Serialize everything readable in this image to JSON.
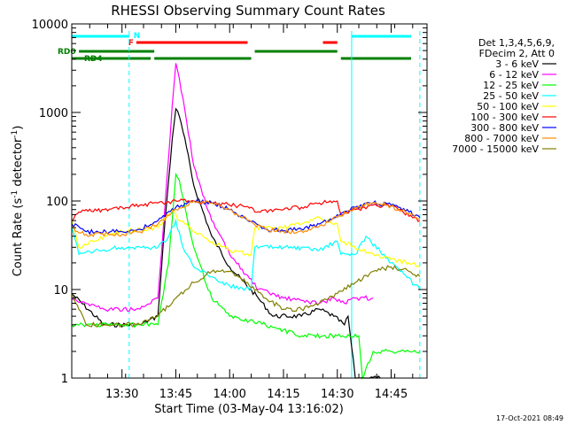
{
  "chart_data": {
    "type": "line",
    "title": "RHESSI Observing Summary Count Rates",
    "xlabel": "Start Time (03-May-04 13:16:02)",
    "ylabel": "Count Rate (s^-1 detector^-1)",
    "ylabel_main": "Count Rate (s",
    "ylabel_sup1": "-1",
    "ylabel_mid": " detector",
    "ylabel_sup2": "-1",
    "ylabel_end": ")",
    "xlim": [
      "13:16:02",
      "14:55"
    ],
    "ylim": [
      1,
      10000
    ],
    "yscale": "log",
    "x_ticks": [
      "13:30",
      "13:45",
      "14:00",
      "14:15",
      "14:30",
      "14:45"
    ],
    "y_ticks": [
      "1",
      "10",
      "100",
      "1000",
      "10000"
    ],
    "legend": {
      "position": "right",
      "header": [
        "Det 1,3,4,5,6,9,",
        "FDecim 2, Att 0"
      ]
    },
    "series": [
      {
        "name": "3 - 6 keV",
        "color": "#000000",
        "x": [
          "13:16",
          "13:25",
          "13:35",
          "13:40",
          "13:42",
          "13:44",
          "13:45",
          "13:46",
          "13:48",
          "13:50",
          "13:55",
          "14:00",
          "14:08",
          "14:12",
          "14:20",
          "14:25",
          "14:29",
          "14:32",
          "14:33",
          "14:35",
          "14:38",
          "14:42"
        ],
        "y": [
          9,
          4,
          4,
          5,
          60,
          500,
          1100,
          900,
          400,
          150,
          40,
          18,
          8,
          5,
          5,
          6,
          5,
          4,
          5,
          1,
          1,
          1
        ]
      },
      {
        "name": "6 - 12 keV",
        "color": "#ff00ff",
        "x": [
          "13:16",
          "13:25",
          "13:35",
          "13:40",
          "13:42",
          "13:44",
          "13:45",
          "13:46",
          "13:48",
          "13:50",
          "13:55",
          "14:00",
          "14:08",
          "14:15",
          "14:25",
          "14:29",
          "14:32",
          "14:35",
          "14:40"
        ],
        "y": [
          8,
          6,
          6,
          8,
          90,
          1200,
          3600,
          2400,
          800,
          250,
          60,
          25,
          10,
          8,
          7,
          8,
          7,
          8,
          8
        ]
      },
      {
        "name": "12 - 25 keV",
        "color": "#00ff00",
        "x": [
          "13:16",
          "13:20",
          "13:30",
          "13:40",
          "13:43",
          "13:45",
          "13:46",
          "13:50",
          "13:55",
          "14:00",
          "14:10",
          "14:20",
          "14:30",
          "14:36",
          "14:37",
          "14:40",
          "14:50",
          "14:53"
        ],
        "y": [
          4,
          4,
          4,
          4,
          20,
          200,
          170,
          30,
          8,
          5,
          4,
          3,
          3,
          3,
          1,
          2,
          2,
          2
        ]
      },
      {
        "name": "25 - 50 keV",
        "color": "#00ffff",
        "x": [
          "13:16",
          "13:18",
          "13:25",
          "13:30",
          "13:40",
          "13:43",
          "13:45",
          "13:47",
          "13:50",
          "13:55",
          "14:00",
          "14:06",
          "14:07",
          "14:15",
          "14:25",
          "14:30",
          "14:31",
          "14:35",
          "14:38",
          "14:45",
          "14:53"
        ],
        "y": [
          50,
          25,
          28,
          30,
          30,
          40,
          60,
          30,
          18,
          14,
          11,
          10,
          30,
          30,
          28,
          35,
          25,
          25,
          40,
          20,
          10
        ]
      },
      {
        "name": "50 - 100 keV",
        "color": "#ffff00",
        "x": [
          "13:16",
          "13:18",
          "13:25",
          "13:30",
          "13:40",
          "13:44",
          "13:46",
          "13:50",
          "13:55",
          "14:00",
          "14:06",
          "14:07",
          "14:15",
          "14:20",
          "14:25",
          "14:30",
          "14:31",
          "14:40",
          "14:45",
          "14:50",
          "14:53"
        ],
        "y": [
          60,
          30,
          40,
          45,
          50,
          80,
          60,
          45,
          35,
          28,
          25,
          50,
          50,
          55,
          65,
          55,
          35,
          25,
          22,
          20,
          18
        ]
      },
      {
        "name": "100 - 300 keV",
        "color": "#ff0000",
        "x": [
          "13:16",
          "13:18",
          "13:25",
          "13:30",
          "13:35",
          "13:40",
          "13:45",
          "13:50",
          "13:55",
          "14:00",
          "14:06",
          "14:07",
          "14:15",
          "14:20",
          "14:25",
          "14:30",
          "14:31",
          "14:35",
          "14:40",
          "14:45",
          "14:53"
        ],
        "y": [
          60,
          75,
          80,
          85,
          90,
          95,
          100,
          100,
          95,
          90,
          85,
          75,
          80,
          85,
          95,
          100,
          70,
          80,
          90,
          88,
          60
        ]
      },
      {
        "name": "300 - 800 keV",
        "color": "#0000ff",
        "x": [
          "13:16",
          "13:20",
          "13:30",
          "13:35",
          "13:40",
          "13:45",
          "13:50",
          "13:55",
          "14:00",
          "14:05",
          "14:10",
          "14:15",
          "14:20",
          "14:25",
          "14:30",
          "14:35",
          "14:40",
          "14:45",
          "14:50",
          "14:53"
        ],
        "y": [
          55,
          45,
          45,
          48,
          60,
          85,
          100,
          95,
          80,
          60,
          48,
          46,
          48,
          55,
          70,
          85,
          95,
          90,
          75,
          65
        ]
      },
      {
        "name": "800 - 7000 keV",
        "color": "#ff8c00",
        "x": [
          "13:16",
          "13:20",
          "13:30",
          "13:35",
          "13:40",
          "13:45",
          "13:50",
          "13:55",
          "14:00",
          "14:05",
          "14:10",
          "14:15",
          "14:20",
          "14:25",
          "14:30",
          "14:35",
          "14:40",
          "14:45",
          "14:50",
          "14:53"
        ],
        "y": [
          50,
          42,
          42,
          45,
          55,
          80,
          100,
          95,
          80,
          60,
          48,
          45,
          46,
          52,
          65,
          85,
          95,
          88,
          72,
          62
        ]
      },
      {
        "name": "7000 - 15000 keV",
        "color": "#808000",
        "x": [
          "13:16",
          "13:20",
          "13:25",
          "13:30",
          "13:35",
          "13:40",
          "13:45",
          "13:50",
          "13:55",
          "14:00",
          "14:05",
          "14:10",
          "14:15",
          "14:20",
          "14:25",
          "14:30",
          "14:35",
          "14:40",
          "14:45",
          "14:50",
          "14:53"
        ],
        "y": [
          9,
          4,
          4,
          4,
          4,
          5,
          8,
          12,
          16,
          16,
          12,
          8,
          6,
          6,
          7,
          9,
          12,
          16,
          18,
          16,
          14
        ]
      }
    ],
    "flags": [
      {
        "label": "N",
        "color": "#00ffff",
        "segments": [
          [
            "13:16",
            "13:32"
          ],
          [
            "14:34",
            "14:55"
          ]
        ],
        "level": 0
      },
      {
        "label": "F",
        "color": "#ff0000",
        "segments": [
          [
            "13:34",
            "14:05"
          ],
          [
            "14:26",
            "14:30"
          ]
        ],
        "level": 1
      },
      {
        "label": "RD0",
        "color": "#008000",
        "segments": [
          [
            "13:18",
            "13:39"
          ],
          [
            "14:07",
            "14:30"
          ]
        ],
        "level": 2
      },
      {
        "label": "RD4",
        "color": "#008000",
        "segments": [
          [
            "13:16",
            "13:38"
          ],
          [
            "13:39",
            "14:06"
          ],
          [
            "14:31",
            "14:55"
          ]
        ],
        "level": 3
      }
    ],
    "vlines": [
      {
        "time": "13:16",
        "color": "#00ffff",
        "style": "solid"
      },
      {
        "time": "13:32",
        "color": "#00ffff",
        "style": "dashed"
      },
      {
        "time": "14:34",
        "color": "#00ffff",
        "style": "solid"
      },
      {
        "time": "14:53",
        "color": "#00ffff",
        "style": "dashed"
      }
    ],
    "footer": "17-Oct-2021 08:49"
  }
}
